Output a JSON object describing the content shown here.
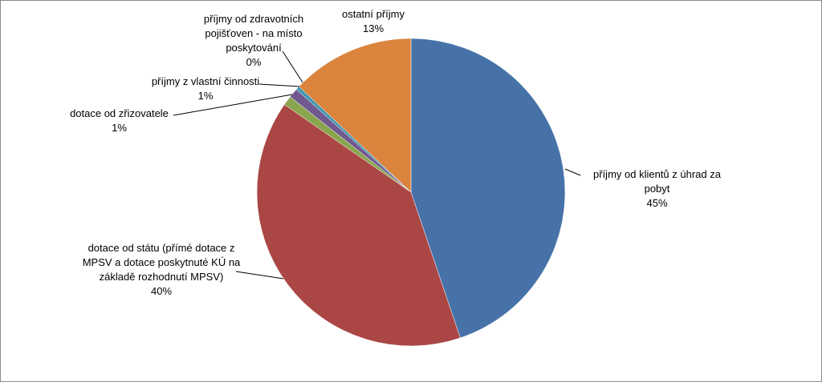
{
  "chart_data": {
    "type": "pie",
    "categories": [
      "příjmy od klientů z úhrad za pobyt",
      "dotace od státu (přímé dotace z MPSV a dotace poskytnuté KÚ na základě rozhodnutí MPSV)",
      "dotace od zřizovatele",
      "příjmy z vlastní činnosti",
      "příjmy od zdravotních pojišťoven - na místo poskytování",
      "ostatní příjmy"
    ],
    "values": [
      45,
      40,
      1,
      1,
      0.4,
      13
    ],
    "value_labels": [
      "45%",
      "40%",
      "1%",
      "1%",
      "0%",
      "13%"
    ],
    "colors": [
      "#4672a8",
      "#aa4644",
      "#89a54e",
      "#71588f",
      "#4198af",
      "#db843d"
    ]
  }
}
